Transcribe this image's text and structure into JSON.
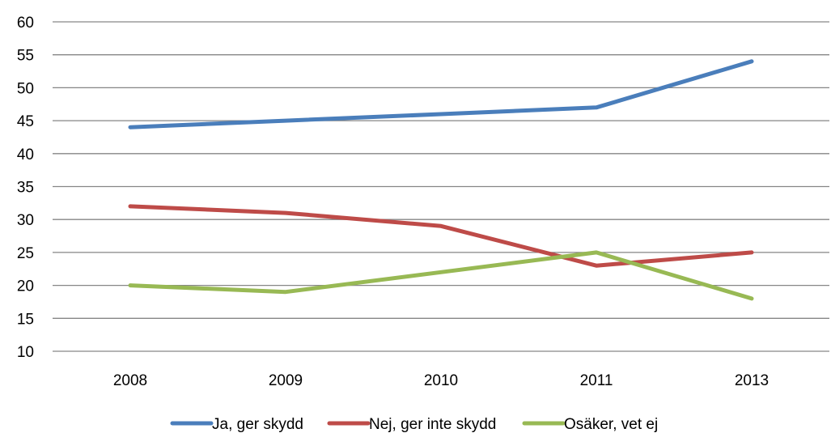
{
  "chart_data": {
    "type": "line",
    "categories": [
      "2008",
      "2009",
      "2010",
      "2011",
      "2013"
    ],
    "series": [
      {
        "name": "Ja, ger skydd",
        "values": [
          44,
          45,
          46,
          47,
          54
        ],
        "color": "#4a7ebb"
      },
      {
        "name": "Nej, ger inte skydd",
        "values": [
          32,
          31,
          29,
          23,
          25
        ],
        "color": "#be4b48"
      },
      {
        "name": "Osäker, vet ej",
        "values": [
          20,
          19,
          22,
          25,
          18
        ],
        "color": "#98b954"
      }
    ],
    "ylim": [
      10,
      60
    ],
    "yticks": [
      10,
      15,
      20,
      25,
      30,
      35,
      40,
      45,
      50,
      55,
      60
    ],
    "grid": true,
    "legend_position": "bottom",
    "title": "",
    "xlabel": "",
    "ylabel": ""
  }
}
